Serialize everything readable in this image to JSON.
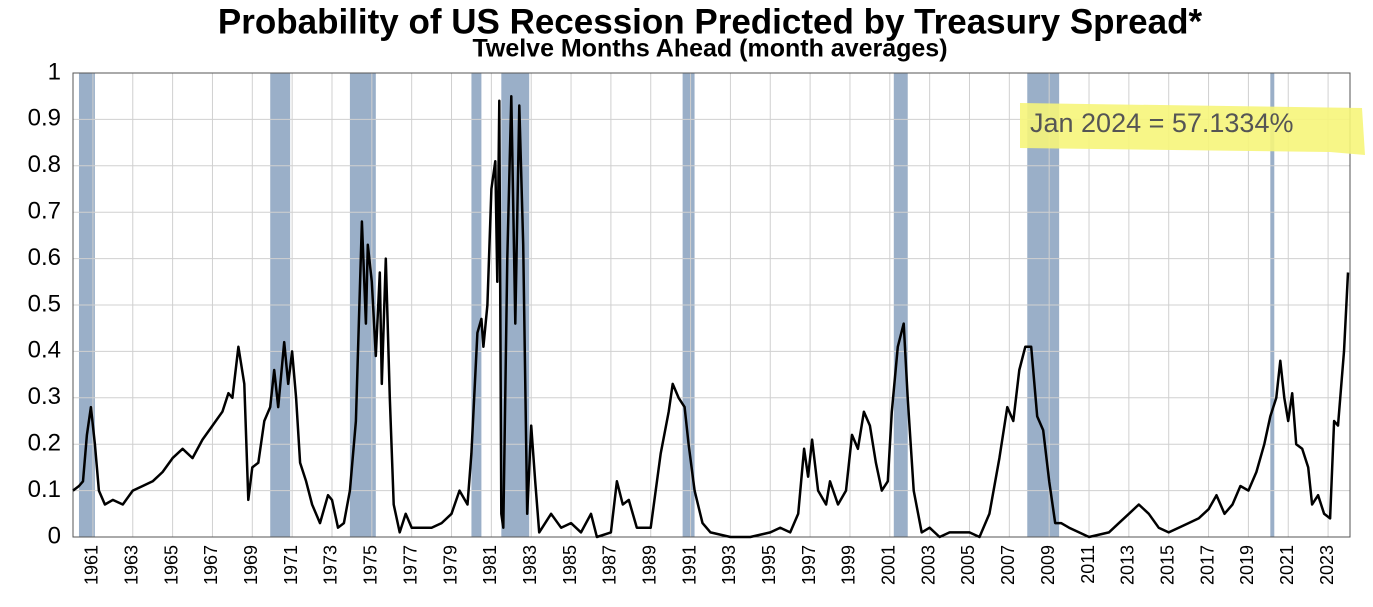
{
  "chart_data": {
    "type": "line",
    "title": "Probability of US Recession Predicted by Treasury Spread*",
    "subtitle": "Twelve Months Ahead (month averages)",
    "annotation": "Jan 2024 = 57.1334%",
    "color": "#000000",
    "recession_color": "#9aafc8",
    "grid": true,
    "xlim": [
      1960,
      2024.1
    ],
    "ylim": [
      0,
      1
    ],
    "yticks": [
      0,
      0.1,
      0.2,
      0.3,
      0.4,
      0.5,
      0.6,
      0.7,
      0.8,
      0.9,
      1
    ],
    "xticks": [
      1961,
      1963,
      1965,
      1967,
      1969,
      1971,
      1973,
      1975,
      1977,
      1979,
      1981,
      1983,
      1985,
      1987,
      1989,
      1991,
      1993,
      1995,
      1997,
      1999,
      2001,
      2003,
      2005,
      2007,
      2009,
      2011,
      2013,
      2015,
      2017,
      2019,
      2021,
      2023
    ],
    "recessions": [
      [
        1960.3,
        1961.1
      ],
      [
        1969.9,
        1970.9
      ],
      [
        1973.9,
        1975.2
      ],
      [
        1980.0,
        1980.5
      ],
      [
        1981.5,
        1982.9
      ],
      [
        1990.6,
        1991.2
      ],
      [
        2001.2,
        2001.9
      ],
      [
        2007.9,
        2009.5
      ],
      [
        2020.1,
        2020.3
      ]
    ],
    "x": [
      1960.0,
      1960.3,
      1960.5,
      1960.7,
      1960.9,
      1961.1,
      1961.3,
      1961.6,
      1962.0,
      1962.5,
      1963.0,
      1963.5,
      1964.0,
      1964.5,
      1965.0,
      1965.5,
      1966.0,
      1966.5,
      1967.0,
      1967.5,
      1967.8,
      1968.0,
      1968.3,
      1968.6,
      1968.8,
      1969.0,
      1969.3,
      1969.6,
      1969.9,
      1970.1,
      1970.3,
      1970.6,
      1970.8,
      1971.0,
      1971.2,
      1971.4,
      1971.7,
      1972.0,
      1972.4,
      1972.8,
      1973.0,
      1973.3,
      1973.6,
      1973.9,
      1974.2,
      1974.5,
      1974.7,
      1974.8,
      1975.0,
      1975.2,
      1975.4,
      1975.5,
      1975.7,
      1975.9,
      1976.1,
      1976.4,
      1976.7,
      1977.0,
      1978.0,
      1978.5,
      1979.0,
      1979.4,
      1979.8,
      1980.0,
      1980.3,
      1980.5,
      1980.6,
      1980.8,
      1981.0,
      1981.2,
      1981.3,
      1981.4,
      1981.5,
      1981.6,
      1981.8,
      1982.0,
      1982.2,
      1982.4,
      1982.6,
      1982.8,
      1983.0,
      1983.2,
      1983.4,
      1984.0,
      1984.5,
      1985.0,
      1985.5,
      1986.0,
      1986.3,
      1987.0,
      1987.3,
      1987.6,
      1987.9,
      1988.3,
      1989.0,
      1989.5,
      1989.9,
      1990.1,
      1990.4,
      1990.7,
      1990.9,
      1991.2,
      1991.6,
      1992.0,
      1993.0,
      1994.0,
      1995.0,
      1995.5,
      1996.0,
      1996.4,
      1996.7,
      1996.9,
      1997.1,
      1997.4,
      1997.8,
      1998.0,
      1998.4,
      1998.8,
      1999.1,
      1999.4,
      1999.7,
      2000.0,
      2000.3,
      2000.6,
      2000.9,
      2001.1,
      2001.4,
      2001.7,
      2001.9,
      2002.2,
      2002.6,
      2003.0,
      2003.5,
      2004.0,
      2005.0,
      2005.5,
      2006.0,
      2006.5,
      2006.9,
      2007.2,
      2007.5,
      2007.8,
      2008.1,
      2008.4,
      2008.7,
      2009.0,
      2009.3,
      2009.6,
      2010.0,
      2010.5,
      2011.0,
      2012.0,
      2012.5,
      2013.0,
      2013.5,
      2014.0,
      2014.5,
      2015.0,
      2015.5,
      2016.0,
      2016.5,
      2017.0,
      2017.4,
      2017.8,
      2018.2,
      2018.6,
      2019.0,
      2019.4,
      2019.8,
      2020.1,
      2020.4,
      2020.6,
      2020.8,
      2021.0,
      2021.2,
      2021.4,
      2021.7,
      2022.0,
      2022.2,
      2022.5,
      2022.8,
      2023.1,
      2023.3,
      2023.5,
      2023.8,
      2024.0
    ],
    "values": [
      0.1,
      0.11,
      0.12,
      0.22,
      0.28,
      0.2,
      0.1,
      0.07,
      0.08,
      0.07,
      0.1,
      0.11,
      0.12,
      0.14,
      0.17,
      0.19,
      0.17,
      0.21,
      0.24,
      0.27,
      0.31,
      0.3,
      0.41,
      0.33,
      0.08,
      0.15,
      0.16,
      0.25,
      0.28,
      0.36,
      0.28,
      0.42,
      0.33,
      0.4,
      0.3,
      0.16,
      0.12,
      0.07,
      0.03,
      0.09,
      0.08,
      0.02,
      0.03,
      0.1,
      0.25,
      0.68,
      0.46,
      0.63,
      0.55,
      0.39,
      0.57,
      0.33,
      0.6,
      0.3,
      0.07,
      0.01,
      0.05,
      0.02,
      0.02,
      0.03,
      0.05,
      0.1,
      0.07,
      0.18,
      0.44,
      0.47,
      0.41,
      0.5,
      0.75,
      0.81,
      0.55,
      0.94,
      0.05,
      0.02,
      0.6,
      0.95,
      0.46,
      0.93,
      0.63,
      0.05,
      0.24,
      0.12,
      0.01,
      0.05,
      0.02,
      0.03,
      0.01,
      0.05,
      0.0,
      0.01,
      0.12,
      0.07,
      0.08,
      0.02,
      0.02,
      0.18,
      0.27,
      0.33,
      0.3,
      0.28,
      0.2,
      0.1,
      0.03,
      0.01,
      0.0,
      0.0,
      0.01,
      0.02,
      0.01,
      0.05,
      0.19,
      0.13,
      0.21,
      0.1,
      0.07,
      0.12,
      0.07,
      0.1,
      0.22,
      0.19,
      0.27,
      0.24,
      0.16,
      0.1,
      0.12,
      0.27,
      0.41,
      0.46,
      0.3,
      0.1,
      0.01,
      0.02,
      0.0,
      0.01,
      0.01,
      0.0,
      0.05,
      0.17,
      0.28,
      0.25,
      0.36,
      0.41,
      0.41,
      0.26,
      0.23,
      0.12,
      0.03,
      0.03,
      0.02,
      0.01,
      0.0,
      0.01,
      0.03,
      0.05,
      0.07,
      0.05,
      0.02,
      0.01,
      0.02,
      0.03,
      0.04,
      0.06,
      0.09,
      0.05,
      0.07,
      0.11,
      0.1,
      0.14,
      0.2,
      0.26,
      0.3,
      0.38,
      0.3,
      0.25,
      0.31,
      0.2,
      0.19,
      0.15,
      0.07,
      0.09,
      0.05,
      0.04,
      0.25,
      0.24,
      0.4,
      0.57
    ]
  }
}
